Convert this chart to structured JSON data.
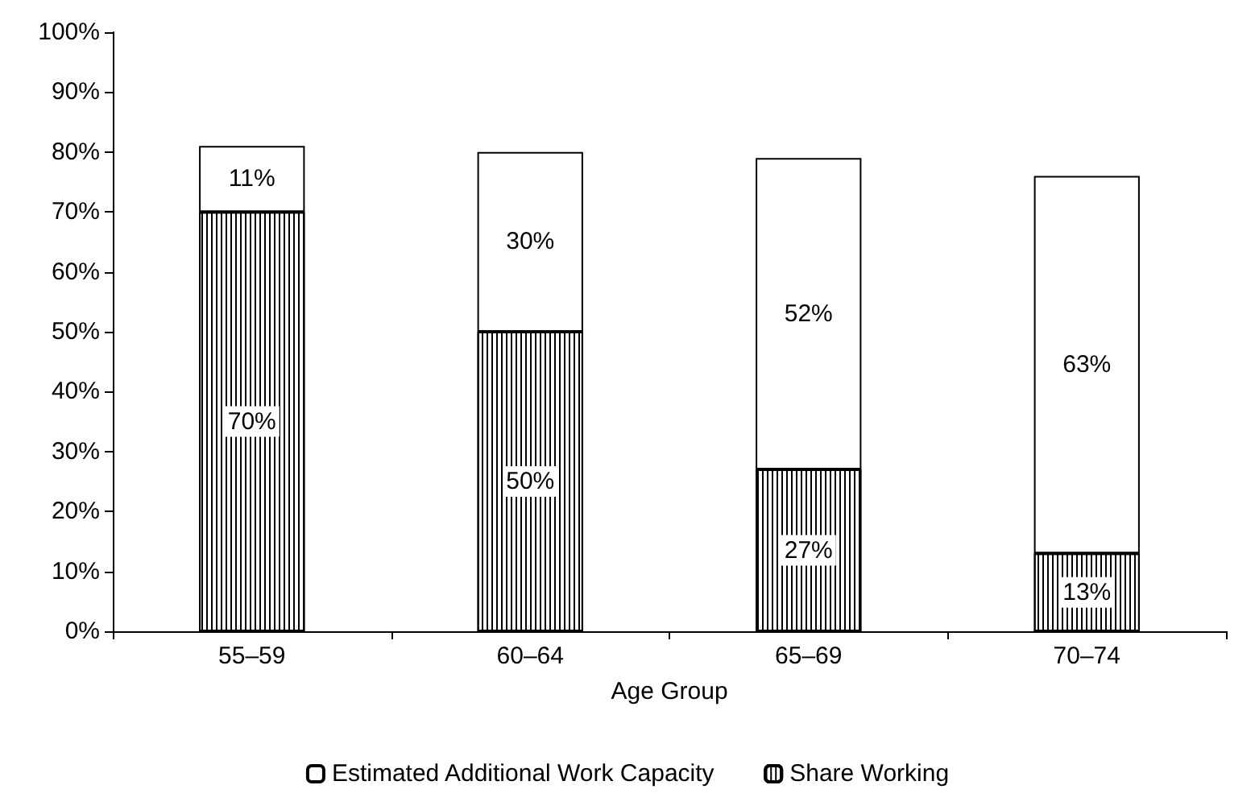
{
  "chart_data": {
    "type": "bar",
    "stacked": true,
    "xlabel": "Age Group",
    "categories": [
      "55–59",
      "60–64",
      "65–69",
      "70–74"
    ],
    "series": [
      {
        "name": "Share Working",
        "color": "#000000",
        "values": [
          70,
          50,
          27,
          13
        ],
        "value_labels": [
          "70%",
          "50%",
          "27%",
          "13%"
        ]
      },
      {
        "name": "Estimated Additional Work Capacity",
        "color": "#ffffff",
        "values": [
          11,
          30,
          52,
          63
        ],
        "value_labels": [
          "11%",
          "30%",
          "52%",
          "63%"
        ]
      }
    ],
    "ylim": [
      0,
      100
    ],
    "yticks": [
      {
        "value": 0,
        "label": "0%"
      },
      {
        "value": 10,
        "label": "10%"
      },
      {
        "value": 20,
        "label": "20%"
      },
      {
        "value": 30,
        "label": "30%"
      },
      {
        "value": 40,
        "label": "40%"
      },
      {
        "value": 50,
        "label": "50%"
      },
      {
        "value": 60,
        "label": "60%"
      },
      {
        "value": 70,
        "label": "70%"
      },
      {
        "value": 80,
        "label": "80%"
      },
      {
        "value": 90,
        "label": "90%"
      },
      {
        "value": 100,
        "label": "100%"
      }
    ],
    "grid": false,
    "legend": "bottom"
  }
}
